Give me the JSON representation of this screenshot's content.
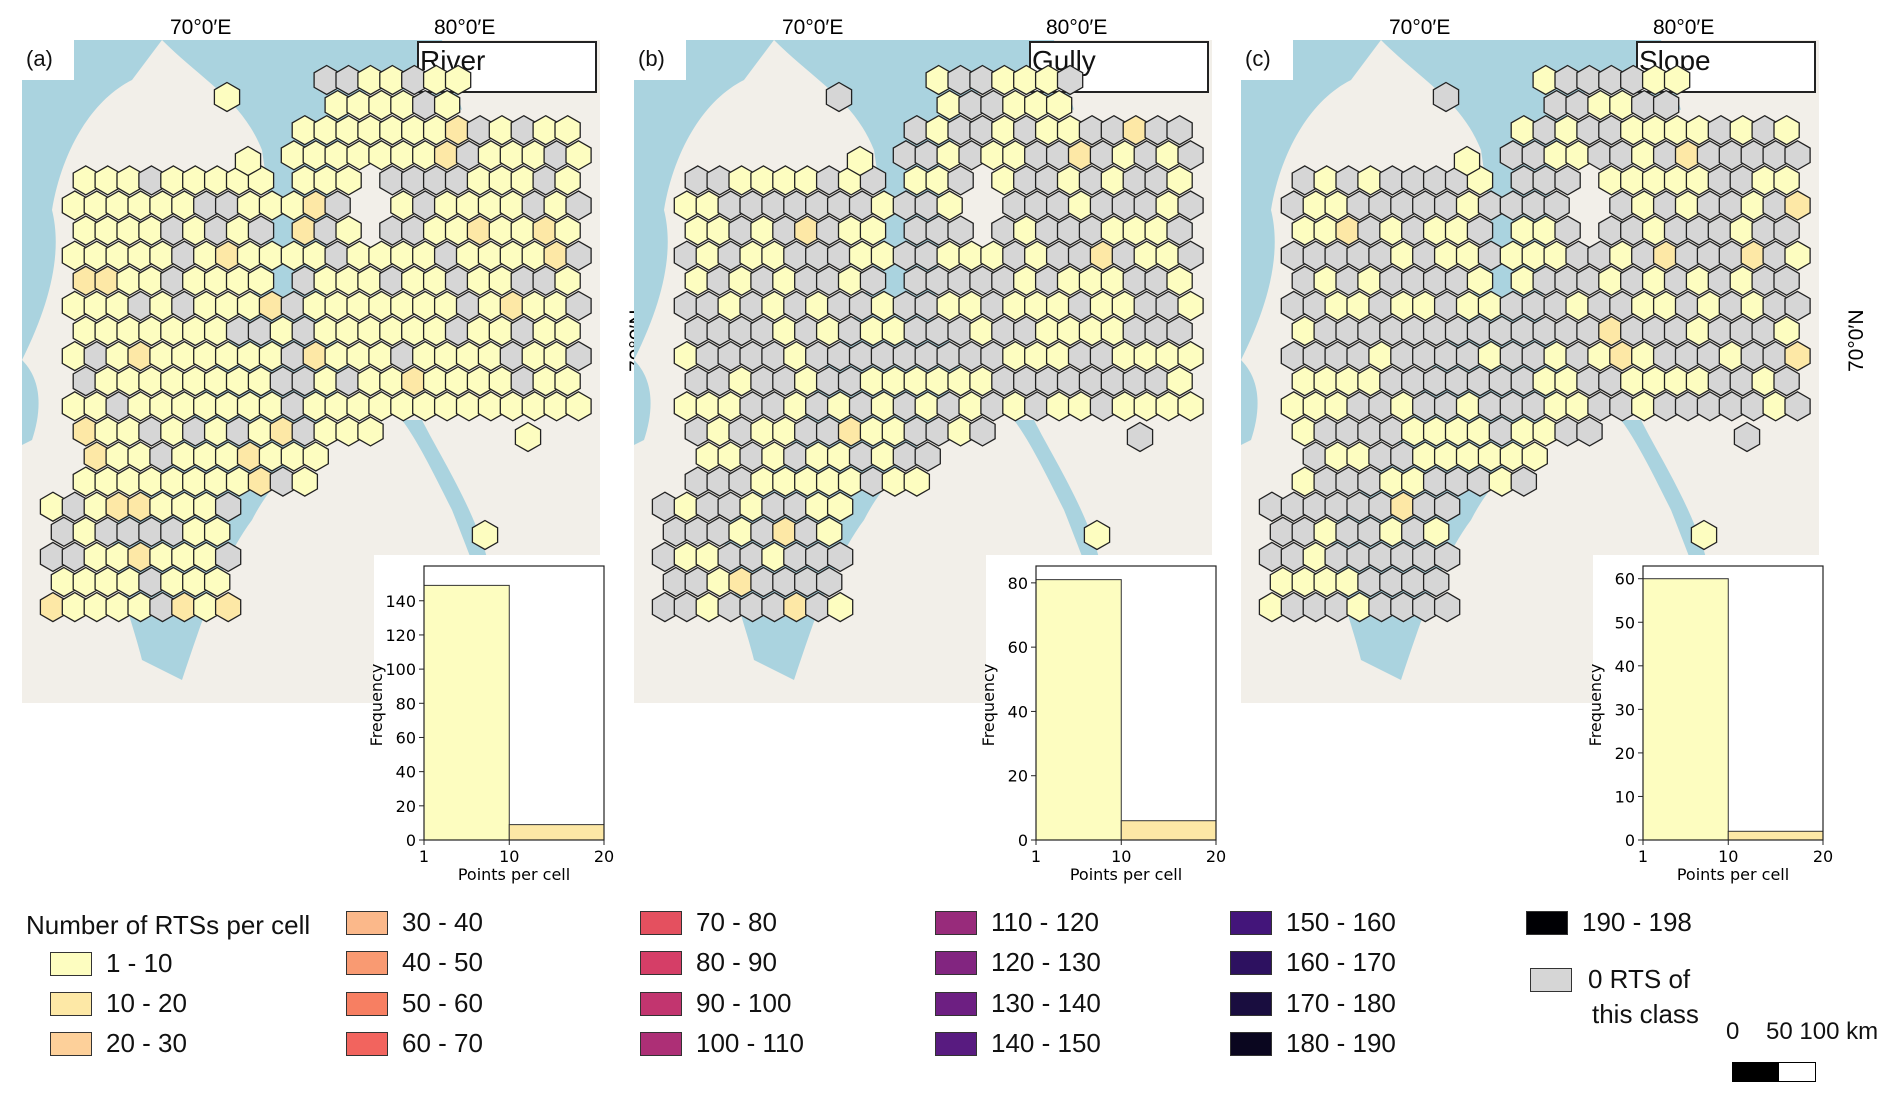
{
  "panels": [
    {
      "letter": "(a)",
      "class_label": "River",
      "histogram": {
        "values": [
          149,
          9
        ],
        "yticks": [
          "0",
          "20",
          "40",
          "60",
          "80",
          "100",
          "120",
          "140"
        ],
        "ymax": 158
      }
    },
    {
      "letter": "(b)",
      "class_label": "Gully",
      "histogram": {
        "values": [
          81,
          6
        ],
        "yticks": [
          "0",
          "20",
          "40",
          "60",
          "80"
        ],
        "ymax": 84
      }
    },
    {
      "letter": "(c)",
      "class_label": "Slope",
      "histogram": {
        "values": [
          60,
          2
        ],
        "yticks": [
          "0",
          "10",
          "20",
          "30",
          "40",
          "50",
          "60"
        ],
        "ymax": 62
      }
    }
  ],
  "graticule": {
    "lon_labels": [
      "70°0′E",
      "80°0′E"
    ],
    "lat_label": "70°0′N"
  },
  "histogram_axes": {
    "xlabel": "Points per cell",
    "ylabel": "Frequency",
    "xticks": [
      "1",
      "10",
      "20"
    ]
  },
  "legend": {
    "title": "Number of RTSs per cell",
    "classes": [
      {
        "label": "1 - 10",
        "color": "#fdfdc0"
      },
      {
        "label": "10 - 20",
        "color": "#fde8a6"
      },
      {
        "label": "20 - 30",
        "color": "#fdd09a"
      },
      {
        "label": "30 - 40",
        "color": "#fbb88a"
      },
      {
        "label": "40 - 50",
        "color": "#f99a72"
      },
      {
        "label": "50 - 60",
        "color": "#f77f62"
      },
      {
        "label": "60 - 70",
        "color": "#f2645e"
      },
      {
        "label": "70 - 80",
        "color": "#e4505f"
      },
      {
        "label": "80 - 90",
        "color": "#d53e67"
      },
      {
        "label": "90 - 100",
        "color": "#c2356f"
      },
      {
        "label": "100 - 110",
        "color": "#ad2f76"
      },
      {
        "label": "110 - 120",
        "color": "#982b7b"
      },
      {
        "label": "120 - 130",
        "color": "#822580"
      },
      {
        "label": "130 - 140",
        "color": "#6d1f82"
      },
      {
        "label": "140 - 150",
        "color": "#581b80"
      },
      {
        "label": "150 - 160",
        "color": "#43157a"
      },
      {
        "label": "160 - 170",
        "color": "#2d1160"
      },
      {
        "label": "170 - 180",
        "color": "#190d3f"
      },
      {
        "label": "180 - 190",
        "color": "#0a061f"
      },
      {
        "label": "190 - 198",
        "color": "#000004"
      }
    ],
    "zero_line1": "0 RTS of",
    "zero_line2": "this class",
    "zero_color": "#d6d6d6"
  },
  "scalebar": {
    "label": "0    50 100 km"
  },
  "colors": {
    "water": "#aad3df",
    "land": "#f2efe9",
    "hex_border": "#222222"
  }
}
